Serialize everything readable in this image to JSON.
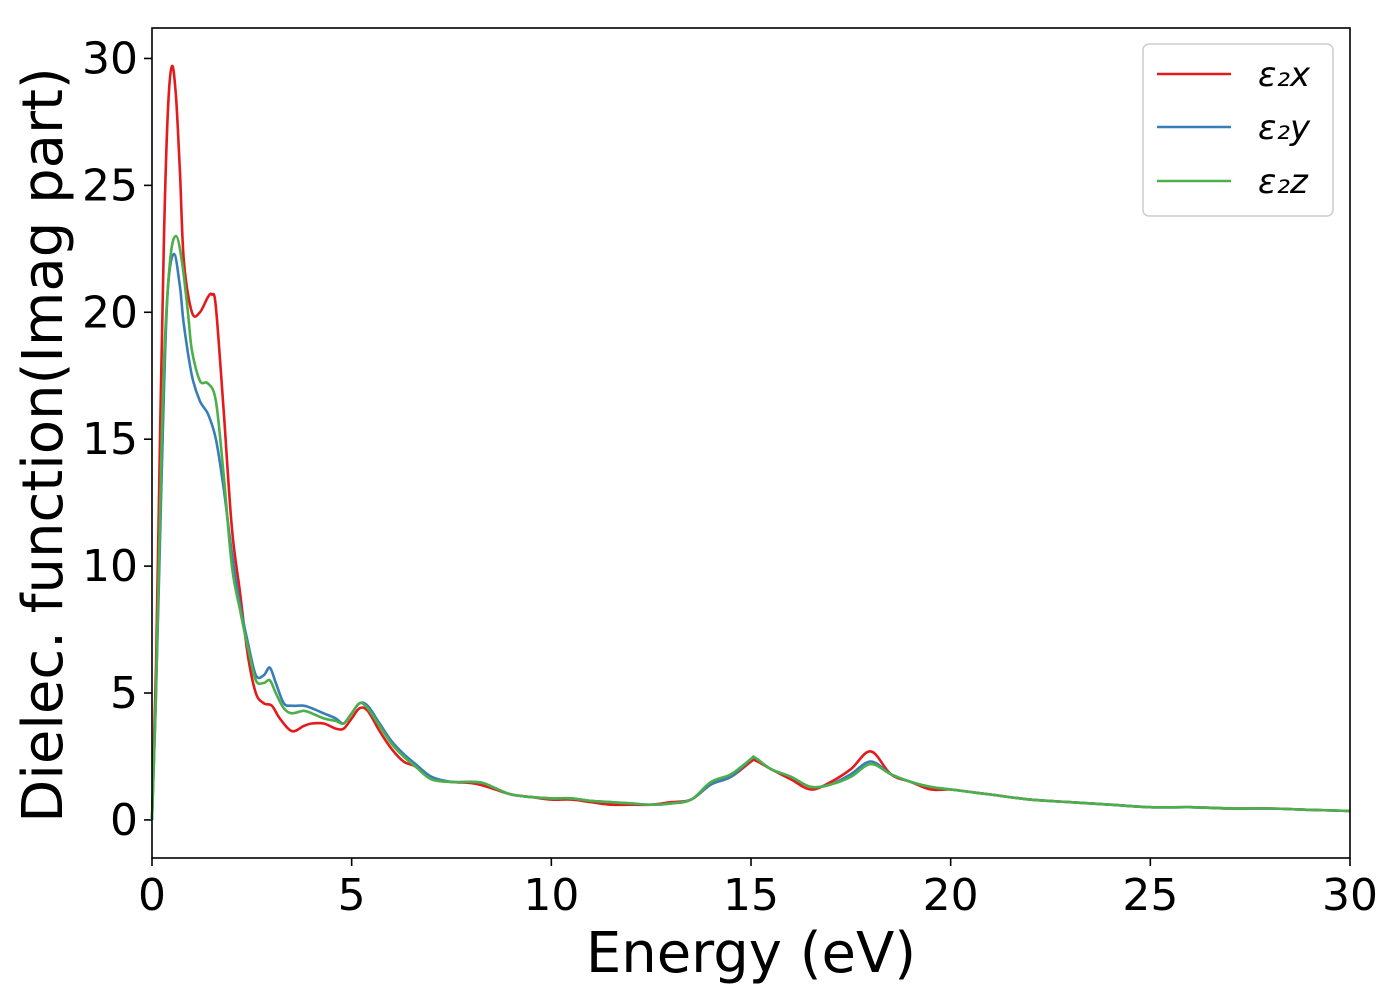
{
  "chart_data": {
    "type": "line",
    "title": "",
    "xlabel": "Energy (eV)",
    "ylabel": "Dielec. function(Imag part)",
    "xlim": [
      0,
      30
    ],
    "ylim": [
      -1.5,
      31.2
    ],
    "xticks": [
      0,
      5,
      10,
      15,
      20,
      25,
      30
    ],
    "yticks": [
      0,
      5,
      10,
      15,
      20,
      25,
      30
    ],
    "grid": false,
    "legend_position": "top-right",
    "series": [
      {
        "name": "ε₂x",
        "color": "#e41a1c",
        "x": [
          0,
          0.1,
          0.2,
          0.3,
          0.4,
          0.5,
          0.6,
          0.7,
          0.8,
          1.0,
          1.2,
          1.4,
          1.5,
          1.6,
          1.8,
          2.0,
          2.2,
          2.4,
          2.6,
          2.8,
          3.0,
          3.2,
          3.5,
          3.8,
          4.0,
          4.3,
          4.6,
          4.8,
          5.0,
          5.2,
          5.4,
          5.7,
          6.0,
          6.3,
          6.6,
          7.0,
          7.5,
          8.0,
          8.3,
          8.6,
          9.0,
          9.5,
          10.0,
          10.5,
          11.0,
          11.5,
          12.0,
          12.5,
          13.0,
          13.5,
          14.0,
          14.5,
          15.0,
          15.1,
          15.5,
          16.0,
          16.5,
          17.0,
          17.5,
          18.0,
          18.5,
          19.0,
          19.5,
          20.0,
          20.5,
          21.0,
          22.0,
          23.0,
          24.0,
          25.0,
          26.0,
          27.0,
          28.0,
          29.0,
          30.0
        ],
        "y": [
          0,
          6.0,
          15.0,
          23.0,
          28.0,
          29.7,
          28.5,
          25.5,
          22.0,
          20.0,
          20.0,
          20.6,
          20.7,
          20.2,
          16.0,
          11.5,
          9.0,
          6.5,
          5.0,
          4.6,
          4.5,
          4.0,
          3.5,
          3.7,
          3.8,
          3.8,
          3.6,
          3.6,
          4.0,
          4.4,
          4.3,
          3.5,
          2.8,
          2.3,
          2.1,
          1.6,
          1.5,
          1.45,
          1.35,
          1.2,
          1.0,
          0.9,
          0.8,
          0.8,
          0.7,
          0.6,
          0.6,
          0.6,
          0.7,
          0.8,
          1.4,
          1.7,
          2.3,
          2.35,
          2.0,
          1.6,
          1.2,
          1.5,
          2.0,
          2.7,
          1.8,
          1.5,
          1.2,
          1.2,
          1.1,
          1.0,
          0.8,
          0.7,
          0.6,
          0.5,
          0.5,
          0.45,
          0.45,
          0.4,
          0.35
        ]
      },
      {
        "name": "ε₂y",
        "color": "#377eb8",
        "x": [
          0,
          0.1,
          0.2,
          0.3,
          0.4,
          0.55,
          0.7,
          0.8,
          1.0,
          1.2,
          1.4,
          1.6,
          1.8,
          2.0,
          2.2,
          2.4,
          2.6,
          2.8,
          2.95,
          3.1,
          3.3,
          3.5,
          3.8,
          4.0,
          4.3,
          4.6,
          4.8,
          5.0,
          5.2,
          5.4,
          5.7,
          6.0,
          6.3,
          6.6,
          7.0,
          7.5,
          8.0,
          8.3,
          8.6,
          9.0,
          9.5,
          10.0,
          10.5,
          11.0,
          11.5,
          12.0,
          12.5,
          13.0,
          13.5,
          14.0,
          14.5,
          15.0,
          15.1,
          15.5,
          16.0,
          16.5,
          17.0,
          17.5,
          18.0,
          18.5,
          19.0,
          19.5,
          20.0,
          20.5,
          21.0,
          22.0,
          23.0,
          24.0,
          25.0,
          26.0,
          27.0,
          28.0,
          29.0,
          30.0
        ],
        "y": [
          0,
          5.0,
          11.0,
          17.0,
          21.0,
          22.3,
          21.0,
          19.5,
          17.5,
          16.5,
          16.0,
          15.0,
          13.0,
          10.5,
          8.5,
          7.0,
          5.7,
          5.7,
          6.0,
          5.4,
          4.6,
          4.5,
          4.5,
          4.4,
          4.2,
          4.0,
          3.8,
          4.2,
          4.6,
          4.5,
          3.8,
          3.1,
          2.6,
          2.2,
          1.7,
          1.5,
          1.5,
          1.45,
          1.25,
          1.0,
          0.9,
          0.85,
          0.85,
          0.75,
          0.7,
          0.65,
          0.6,
          0.65,
          0.8,
          1.4,
          1.7,
          2.4,
          2.45,
          2.0,
          1.7,
          1.3,
          1.4,
          1.8,
          2.3,
          1.8,
          1.5,
          1.3,
          1.2,
          1.1,
          1.0,
          0.8,
          0.7,
          0.6,
          0.5,
          0.5,
          0.45,
          0.45,
          0.4,
          0.35
        ]
      },
      {
        "name": "ε₂z",
        "color": "#4daf4a",
        "x": [
          0,
          0.1,
          0.2,
          0.3,
          0.45,
          0.6,
          0.75,
          0.9,
          1.0,
          1.2,
          1.4,
          1.6,
          1.8,
          2.0,
          2.2,
          2.4,
          2.6,
          2.8,
          2.95,
          3.1,
          3.3,
          3.5,
          3.8,
          4.0,
          4.3,
          4.6,
          4.8,
          5.0,
          5.2,
          5.4,
          5.7,
          6.0,
          6.3,
          6.6,
          7.0,
          7.5,
          8.0,
          8.3,
          8.6,
          9.0,
          9.5,
          10.0,
          10.5,
          11.0,
          11.5,
          12.0,
          12.5,
          13.0,
          13.5,
          14.0,
          14.5,
          15.0,
          15.1,
          15.5,
          16.0,
          16.5,
          17.0,
          17.5,
          18.0,
          18.5,
          19.0,
          19.5,
          20.0,
          20.5,
          21.0,
          22.0,
          23.0,
          24.0,
          25.0,
          26.0,
          27.0,
          28.0,
          29.0,
          30.0
        ],
        "y": [
          0,
          5.0,
          12.0,
          18.0,
          22.0,
          23.0,
          22.0,
          20.0,
          18.5,
          17.3,
          17.2,
          16.5,
          13.5,
          10.0,
          8.3,
          6.8,
          5.5,
          5.4,
          5.5,
          5.0,
          4.4,
          4.2,
          4.3,
          4.2,
          4.0,
          3.9,
          3.8,
          4.2,
          4.6,
          4.4,
          3.7,
          3.0,
          2.5,
          2.1,
          1.6,
          1.5,
          1.5,
          1.45,
          1.25,
          1.0,
          0.9,
          0.85,
          0.85,
          0.75,
          0.7,
          0.65,
          0.6,
          0.65,
          0.8,
          1.5,
          1.8,
          2.4,
          2.45,
          2.0,
          1.7,
          1.3,
          1.4,
          1.7,
          2.2,
          1.8,
          1.5,
          1.3,
          1.2,
          1.1,
          1.0,
          0.8,
          0.7,
          0.6,
          0.5,
          0.5,
          0.45,
          0.45,
          0.4,
          0.35
        ]
      }
    ]
  }
}
